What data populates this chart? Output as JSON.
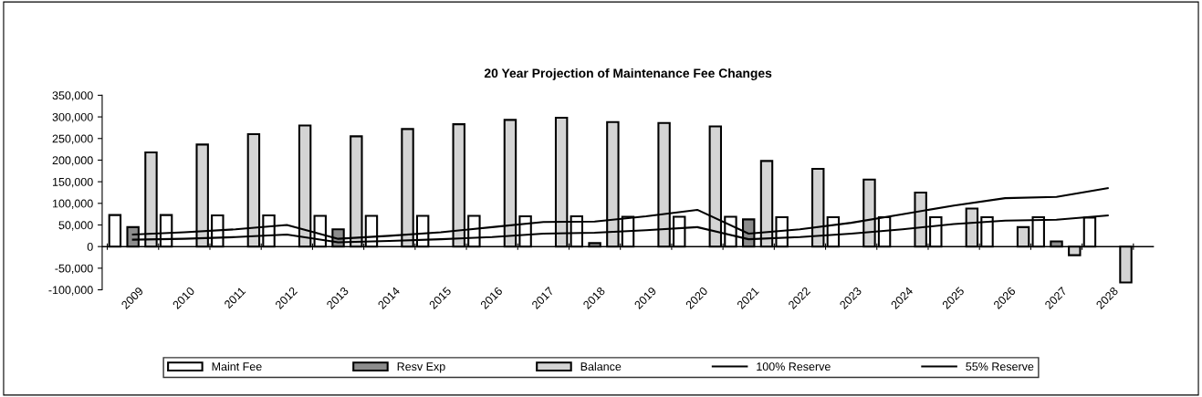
{
  "chart_data": {
    "type": "bar",
    "title": "20 Year Projection of Maintenance Fee Changes",
    "categories": [
      "2009",
      "2010",
      "2011",
      "2012",
      "2013",
      "2014",
      "2015",
      "2016",
      "2017",
      "2018",
      "2019",
      "2020",
      "2021",
      "2022",
      "2023",
      "2024",
      "2025",
      "2026",
      "2027",
      "2028"
    ],
    "series": [
      {
        "name": "Maint Fee",
        "color": "#ffffff",
        "values": [
          73000,
          73000,
          72000,
          72000,
          71000,
          71000,
          71000,
          71000,
          70000,
          70000,
          69000,
          69000,
          69000,
          68000,
          68000,
          68000,
          68000,
          68000,
          68000,
          67000
        ]
      },
      {
        "name": "Resv Exp",
        "color": "#8c8c8c",
        "values": [
          45000,
          null,
          null,
          null,
          40000,
          null,
          null,
          null,
          null,
          8000,
          null,
          null,
          63000,
          null,
          null,
          null,
          null,
          null,
          12000,
          null
        ]
      },
      {
        "name": "Balance",
        "color": "#d4d4d4",
        "values": [
          218000,
          236000,
          260000,
          280000,
          255000,
          272000,
          283000,
          293000,
          298000,
          288000,
          286000,
          278000,
          198000,
          180000,
          155000,
          125000,
          88000,
          45000,
          -20000,
          -83000
        ]
      },
      {
        "name": "100% Reserve",
        "type": "line",
        "color": "#000000",
        "values": [
          28000,
          33000,
          40000,
          50000,
          18000,
          25000,
          33000,
          45000,
          57000,
          58000,
          70000,
          85000,
          30000,
          40000,
          55000,
          75000,
          95000,
          112000,
          115000,
          135000
        ]
      },
      {
        "name": "55% Reserve",
        "type": "line",
        "color": "#000000",
        "values": [
          16000,
          18000,
          22000,
          28000,
          10000,
          13000,
          17000,
          22000,
          30000,
          32000,
          38000,
          45000,
          17000,
          22000,
          30000,
          40000,
          52000,
          60000,
          62000,
          72000
        ]
      }
    ],
    "ylim": [
      -100000,
      350000
    ],
    "yticks": [
      {
        "value": -100000,
        "label": "-100,000"
      },
      {
        "value": -50000,
        "label": "-50,000"
      },
      {
        "value": 0,
        "label": "0"
      },
      {
        "value": 50000,
        "label": "50,000"
      },
      {
        "value": 100000,
        "label": "100,000"
      },
      {
        "value": 150000,
        "label": "150,000"
      },
      {
        "value": 200000,
        "label": "200,000"
      },
      {
        "value": 250000,
        "label": "250,000"
      },
      {
        "value": 300000,
        "label": "300,000"
      },
      {
        "value": 350000,
        "label": "350,000"
      }
    ],
    "ref_lines": [
      {
        "axis": "y",
        "value": 0,
        "color": "#000000",
        "line_style": "solid"
      }
    ],
    "grid": false,
    "legend": "bottom",
    "marker": "none",
    "line_style": "solid"
  }
}
